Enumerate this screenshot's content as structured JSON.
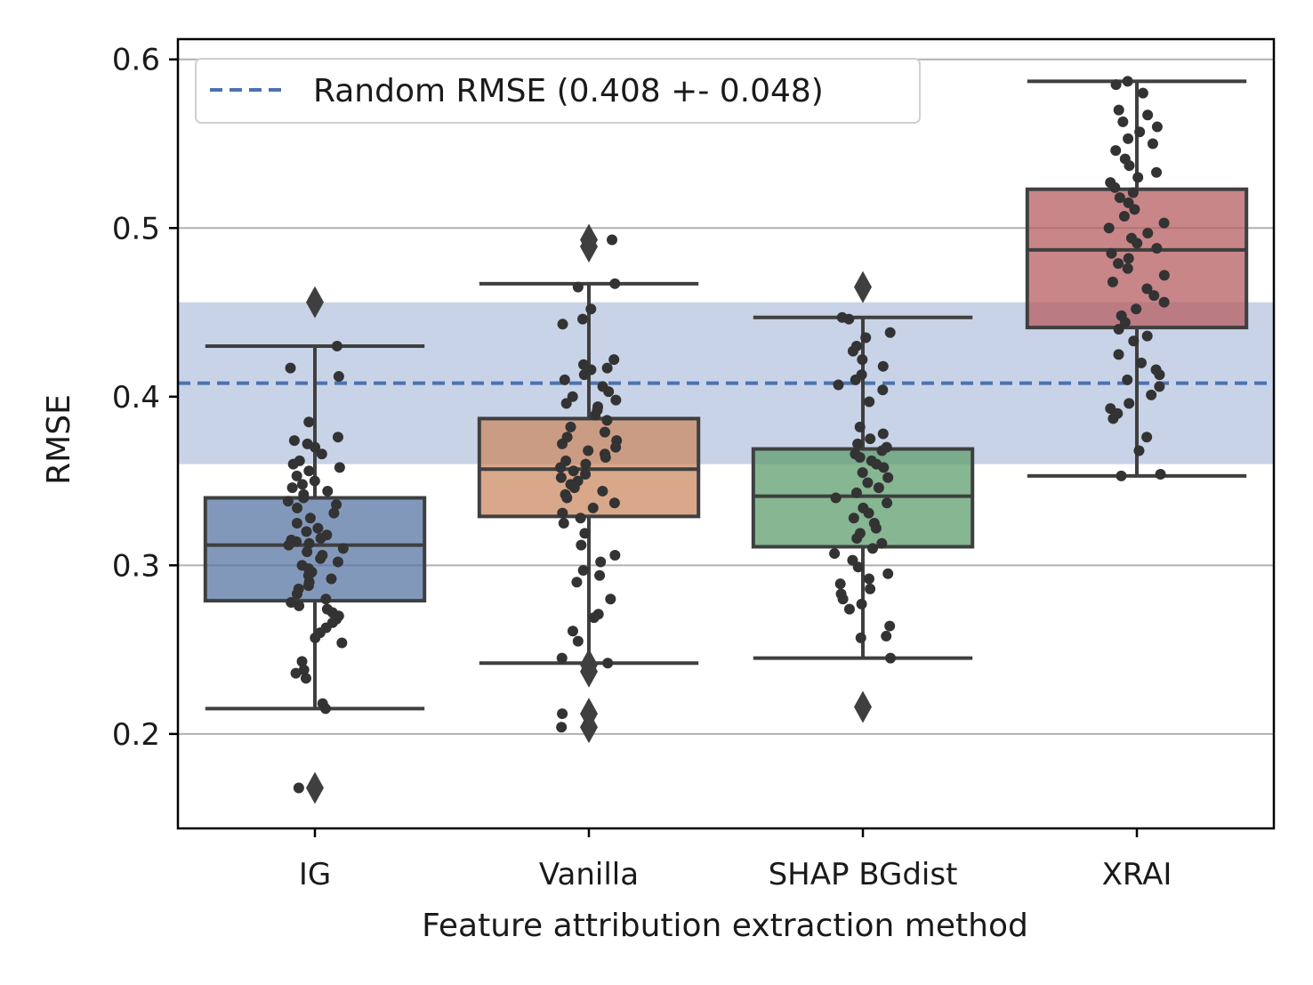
{
  "chart_data": {
    "type": "box",
    "title": "",
    "xlabel": "Feature attribution extraction method",
    "ylabel": "RMSE",
    "ylim": [
      0.144,
      0.612
    ],
    "yticks": [
      0.2,
      0.3,
      0.4,
      0.5,
      0.6
    ],
    "ytick_labels": [
      "0.2",
      "0.3",
      "0.4",
      "0.5",
      "0.6"
    ],
    "grid": "horizontal",
    "legend_position": "top-left",
    "categories": [
      "IG",
      "Vanilla",
      "SHAP BGdist",
      "XRAI"
    ],
    "colors": {
      "IG": "#5875a4",
      "Vanilla": "#cc8963",
      "SHAP BGdist": "#5f9e6e",
      "XRAI": "#b55d60",
      "reference_line": "#4c72b0",
      "reference_band": "#c8d3e7",
      "box_edge": "#3f3f3f",
      "points": "#333333",
      "grid": "#b0b0b0"
    },
    "reference": {
      "label": "Random RMSE (0.408 +- 0.048)",
      "mean": 0.408,
      "std": 0.048
    },
    "boxes": [
      {
        "category": "IG",
        "whisker_low": 0.215,
        "q1": 0.279,
        "median": 0.312,
        "q3": 0.34,
        "whisker_high": 0.43,
        "outliers": [
          0.456,
          0.168
        ],
        "points": [
          0.43,
          0.412,
          0.417,
          0.385,
          0.376,
          0.374,
          0.372,
          0.37,
          0.366,
          0.362,
          0.36,
          0.358,
          0.356,
          0.353,
          0.35,
          0.348,
          0.346,
          0.344,
          0.342,
          0.34,
          0.338,
          0.336,
          0.334,
          0.331,
          0.328,
          0.325,
          0.322,
          0.32,
          0.318,
          0.316,
          0.315,
          0.314,
          0.313,
          0.312,
          0.31,
          0.308,
          0.306,
          0.304,
          0.302,
          0.3,
          0.298,
          0.296,
          0.294,
          0.292,
          0.29,
          0.288,
          0.286,
          0.283,
          0.28,
          0.278,
          0.276,
          0.274,
          0.272,
          0.27,
          0.268,
          0.266,
          0.263,
          0.26,
          0.257,
          0.254,
          0.243,
          0.238,
          0.236,
          0.233,
          0.218,
          0.215,
          0.168
        ]
      },
      {
        "category": "Vanilla",
        "whisker_low": 0.242,
        "q1": 0.329,
        "median": 0.357,
        "q3": 0.387,
        "whisker_high": 0.467,
        "outliers": [
          0.493,
          0.489,
          0.241,
          0.237,
          0.212,
          0.204
        ],
        "points": [
          0.493,
          0.467,
          0.465,
          0.452,
          0.446,
          0.443,
          0.422,
          0.419,
          0.417,
          0.416,
          0.413,
          0.41,
          0.406,
          0.403,
          0.4,
          0.398,
          0.396,
          0.394,
          0.392,
          0.389,
          0.386,
          0.382,
          0.379,
          0.376,
          0.374,
          0.372,
          0.37,
          0.368,
          0.366,
          0.364,
          0.362,
          0.36,
          0.358,
          0.356,
          0.354,
          0.352,
          0.35,
          0.348,
          0.346,
          0.344,
          0.342,
          0.34,
          0.337,
          0.334,
          0.331,
          0.328,
          0.325,
          0.319,
          0.312,
          0.306,
          0.302,
          0.297,
          0.294,
          0.29,
          0.28,
          0.271,
          0.269,
          0.261,
          0.255,
          0.245,
          0.242,
          0.212,
          0.204
        ]
      },
      {
        "category": "SHAP BGdist",
        "whisker_low": 0.245,
        "q1": 0.311,
        "median": 0.341,
        "q3": 0.369,
        "whisker_high": 0.447,
        "outliers": [
          0.465,
          0.216
        ],
        "points": [
          0.447,
          0.446,
          0.438,
          0.435,
          0.43,
          0.427,
          0.422,
          0.418,
          0.413,
          0.41,
          0.407,
          0.404,
          0.397,
          0.382,
          0.378,
          0.375,
          0.372,
          0.37,
          0.368,
          0.366,
          0.364,
          0.362,
          0.36,
          0.358,
          0.355,
          0.352,
          0.349,
          0.346,
          0.343,
          0.34,
          0.337,
          0.334,
          0.331,
          0.328,
          0.325,
          0.322,
          0.319,
          0.316,
          0.313,
          0.31,
          0.307,
          0.303,
          0.299,
          0.295,
          0.292,
          0.289,
          0.286,
          0.283,
          0.28,
          0.277,
          0.274,
          0.264,
          0.258,
          0.257,
          0.245
        ]
      },
      {
        "category": "XRAI",
        "whisker_low": 0.353,
        "q1": 0.441,
        "median": 0.487,
        "q3": 0.523,
        "whisker_high": 0.587,
        "outliers": [],
        "points": [
          0.587,
          0.585,
          0.58,
          0.57,
          0.567,
          0.563,
          0.56,
          0.557,
          0.553,
          0.55,
          0.546,
          0.541,
          0.537,
          0.533,
          0.53,
          0.527,
          0.524,
          0.521,
          0.518,
          0.515,
          0.511,
          0.507,
          0.503,
          0.5,
          0.497,
          0.494,
          0.491,
          0.488,
          0.485,
          0.482,
          0.479,
          0.476,
          0.472,
          0.468,
          0.464,
          0.46,
          0.456,
          0.452,
          0.448,
          0.444,
          0.44,
          0.436,
          0.433,
          0.425,
          0.42,
          0.416,
          0.413,
          0.41,
          0.406,
          0.401,
          0.396,
          0.393,
          0.39,
          0.387,
          0.376,
          0.368,
          0.354,
          0.353
        ]
      }
    ]
  }
}
